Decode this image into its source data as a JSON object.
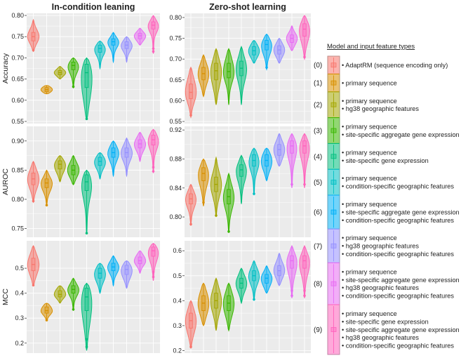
{
  "figure": {
    "col_titles": [
      "In-condition leaning",
      "Zero-shot learning"
    ],
    "row_labels": [
      "Accuracy",
      "AUROC",
      "MCC"
    ]
  },
  "legend": {
    "title": "Model and input feature types",
    "entries": [
      {
        "id": "(0)",
        "color": "#F8766D",
        "lines": [
          "• AdaptRM (sequence encoding only)"
        ]
      },
      {
        "id": "(1)",
        "color": "#D89000",
        "lines": [
          "• primary sequence"
        ]
      },
      {
        "id": "(2)",
        "color": "#A3A500",
        "lines": [
          "• primary sequence",
          "• hg38 geographic features"
        ]
      },
      {
        "id": "(3)",
        "color": "#39B600",
        "lines": [
          "• primary sequence",
          "• site-specific aggregate gene expression"
        ]
      },
      {
        "id": "(4)",
        "color": "#00BF7D",
        "lines": [
          "• primary sequence",
          "• site-specific gene expression"
        ]
      },
      {
        "id": "(5)",
        "color": "#00BFC4",
        "lines": [
          "• primary sequence",
          "• condition-specific geographic features"
        ]
      },
      {
        "id": "(6)",
        "color": "#00B0F6",
        "lines": [
          "• primary sequence",
          "• site-specific aggregate gene expression",
          "• condition-specific geographic features"
        ]
      },
      {
        "id": "(7)",
        "color": "#9590FF",
        "lines": [
          "• primary sequence",
          "• hg38 geographic features",
          "• condition-specific geographic features"
        ]
      },
      {
        "id": "(8)",
        "color": "#E76BF3",
        "lines": [
          "• primary sequence",
          "• site-specific aggregate gene expression",
          "• hg38 geographic features",
          "• condition-specific geographic features"
        ]
      },
      {
        "id": "(9)",
        "color": "#FF62BC",
        "lines": [
          "• primary sequence",
          "• site-specific gene expression",
          "• site-specific aggregate gene expression",
          "• hg38 geographic features",
          "• condition-specific geographic features"
        ]
      }
    ]
  },
  "chart_data": [
    {
      "type": "violin",
      "panel": "In-condition leaning",
      "ylabel": "Accuracy",
      "ylim": [
        0.545,
        0.805
      ],
      "yticks": [
        0.55,
        0.6,
        0.65,
        0.7,
        0.75,
        0.8
      ],
      "tick_labels": [
        "0.55",
        "0.60",
        "0.65",
        "0.70",
        "0.75",
        "0.80"
      ],
      "series": [
        {
          "model": "(0)",
          "min": 0.715,
          "max": 0.79,
          "q1": 0.74,
          "median": 0.75,
          "q3": 0.76,
          "outliers": [
            0.718
          ]
        },
        {
          "model": "(1)",
          "min": 0.615,
          "max": 0.635,
          "q1": 0.62,
          "median": 0.625,
          "q3": 0.63,
          "outliers": []
        },
        {
          "model": "(2)",
          "min": 0.65,
          "max": 0.68,
          "q1": 0.66,
          "median": 0.665,
          "q3": 0.67,
          "outliers": []
        },
        {
          "model": "(3)",
          "min": 0.63,
          "max": 0.7,
          "q1": 0.672,
          "median": 0.682,
          "q3": 0.69,
          "outliers": [
            0.632
          ]
        },
        {
          "model": "(4)",
          "min": 0.555,
          "max": 0.7,
          "q1": 0.63,
          "median": 0.665,
          "q3": 0.685,
          "outliers": [
            0.556
          ]
        },
        {
          "model": "(5)",
          "min": 0.675,
          "max": 0.74,
          "q1": 0.713,
          "median": 0.722,
          "q3": 0.73,
          "outliers": []
        },
        {
          "model": "(6)",
          "min": 0.69,
          "max": 0.76,
          "q1": 0.73,
          "median": 0.738,
          "q3": 0.745,
          "outliers": []
        },
        {
          "model": "(7)",
          "min": 0.69,
          "max": 0.75,
          "q1": 0.722,
          "median": 0.73,
          "q3": 0.738,
          "outliers": []
        },
        {
          "model": "(8)",
          "min": 0.73,
          "max": 0.77,
          "q1": 0.745,
          "median": 0.752,
          "q3": 0.758,
          "outliers": []
        },
        {
          "model": "(9)",
          "min": 0.71,
          "max": 0.8,
          "q1": 0.768,
          "median": 0.777,
          "q3": 0.785,
          "outliers": [
            0.715,
            0.722
          ]
        }
      ]
    },
    {
      "type": "violin",
      "panel": "Zero-shot learning",
      "ylabel": "Accuracy",
      "ylim": [
        0.545,
        0.81
      ],
      "yticks": [
        0.55,
        0.6,
        0.65,
        0.7,
        0.75,
        0.8
      ],
      "tick_labels": [
        "0.55",
        "0.60",
        "0.65",
        "0.70",
        "0.75",
        "0.80"
      ],
      "series": [
        {
          "model": "(0)",
          "min": 0.56,
          "max": 0.68,
          "q1": 0.605,
          "median": 0.62,
          "q3": 0.64,
          "outliers": [
            0.565
          ]
        },
        {
          "model": "(1)",
          "min": 0.61,
          "max": 0.71,
          "q1": 0.65,
          "median": 0.665,
          "q3": 0.68,
          "outliers": []
        },
        {
          "model": "(2)",
          "min": 0.59,
          "max": 0.725,
          "q1": 0.65,
          "median": 0.672,
          "q3": 0.69,
          "outliers": []
        },
        {
          "model": "(3)",
          "min": 0.59,
          "max": 0.725,
          "q1": 0.655,
          "median": 0.67,
          "q3": 0.69,
          "outliers": []
        },
        {
          "model": "(4)",
          "min": 0.59,
          "max": 0.73,
          "q1": 0.66,
          "median": 0.678,
          "q3": 0.695,
          "outliers": []
        },
        {
          "model": "(5)",
          "min": 0.69,
          "max": 0.745,
          "q1": 0.71,
          "median": 0.72,
          "q3": 0.73,
          "outliers": []
        },
        {
          "model": "(6)",
          "min": 0.675,
          "max": 0.76,
          "q1": 0.722,
          "median": 0.735,
          "q3": 0.745,
          "outliers": [
            0.68
          ]
        },
        {
          "model": "(7)",
          "min": 0.69,
          "max": 0.75,
          "q1": 0.712,
          "median": 0.722,
          "q3": 0.732,
          "outliers": []
        },
        {
          "model": "(8)",
          "min": 0.72,
          "max": 0.78,
          "q1": 0.74,
          "median": 0.75,
          "q3": 0.758,
          "outliers": []
        },
        {
          "model": "(9)",
          "min": 0.7,
          "max": 0.805,
          "q1": 0.755,
          "median": 0.772,
          "q3": 0.785,
          "outliers": [
            0.705
          ]
        }
      ]
    },
    {
      "type": "violin",
      "panel": "In-condition leaning",
      "ylabel": "AUROC",
      "ylim": [
        0.735,
        0.925
      ],
      "yticks": [
        0.75,
        0.8,
        0.85,
        0.9
      ],
      "tick_labels": [
        "0.75",
        "0.80",
        "0.85",
        "0.90"
      ],
      "series": [
        {
          "model": "(0)",
          "min": 0.795,
          "max": 0.865,
          "q1": 0.825,
          "median": 0.835,
          "q3": 0.845,
          "outliers": [
            0.797
          ]
        },
        {
          "model": "(1)",
          "min": 0.79,
          "max": 0.85,
          "q1": 0.82,
          "median": 0.828,
          "q3": 0.835,
          "outliers": [
            0.79
          ]
        },
        {
          "model": "(2)",
          "min": 0.83,
          "max": 0.875,
          "q1": 0.852,
          "median": 0.86,
          "q3": 0.866,
          "outliers": []
        },
        {
          "model": "(3)",
          "min": 0.825,
          "max": 0.875,
          "q1": 0.842,
          "median": 0.85,
          "q3": 0.858,
          "outliers": []
        },
        {
          "model": "(4)",
          "min": 0.74,
          "max": 0.85,
          "q1": 0.815,
          "median": 0.83,
          "q3": 0.842,
          "outliers": [
            0.742
          ]
        },
        {
          "model": "(5)",
          "min": 0.835,
          "max": 0.88,
          "q1": 0.858,
          "median": 0.865,
          "q3": 0.872,
          "outliers": []
        },
        {
          "model": "(6)",
          "min": 0.84,
          "max": 0.9,
          "q1": 0.872,
          "median": 0.88,
          "q3": 0.888,
          "outliers": []
        },
        {
          "model": "(7)",
          "min": 0.84,
          "max": 0.905,
          "q1": 0.872,
          "median": 0.88,
          "q3": 0.888,
          "outliers": []
        },
        {
          "model": "(8)",
          "min": 0.865,
          "max": 0.915,
          "q1": 0.888,
          "median": 0.895,
          "q3": 0.902,
          "outliers": []
        },
        {
          "model": "(9)",
          "min": 0.845,
          "max": 0.92,
          "q1": 0.893,
          "median": 0.902,
          "q3": 0.91,
          "outliers": [
            0.848,
            0.855
          ]
        }
      ]
    },
    {
      "type": "violin",
      "panel": "Zero-shot learning",
      "ylabel": "AUROC",
      "ylim": [
        0.772,
        0.925
      ],
      "yticks": [
        0.8,
        0.84,
        0.88,
        0.92
      ],
      "tick_labels": [
        "0.80",
        "0.84",
        "0.88",
        "0.92"
      ],
      "series": [
        {
          "model": "(0)",
          "min": 0.788,
          "max": 0.845,
          "q1": 0.818,
          "median": 0.825,
          "q3": 0.832,
          "outliers": [
            0.79
          ]
        },
        {
          "model": "(1)",
          "min": 0.815,
          "max": 0.88,
          "q1": 0.85,
          "median": 0.86,
          "q3": 0.868,
          "outliers": [
            0.82
          ]
        },
        {
          "model": "(2)",
          "min": 0.8,
          "max": 0.882,
          "q1": 0.835,
          "median": 0.845,
          "q3": 0.855,
          "outliers": [
            0.802
          ]
        },
        {
          "model": "(3)",
          "min": 0.778,
          "max": 0.86,
          "q1": 0.818,
          "median": 0.828,
          "q3": 0.838,
          "outliers": [
            0.78
          ]
        },
        {
          "model": "(4)",
          "min": 0.818,
          "max": 0.885,
          "q1": 0.856,
          "median": 0.865,
          "q3": 0.872,
          "outliers": []
        },
        {
          "model": "(5)",
          "min": 0.83,
          "max": 0.895,
          "q1": 0.87,
          "median": 0.878,
          "q3": 0.886,
          "outliers": [
            0.832
          ]
        },
        {
          "model": "(6)",
          "min": 0.85,
          "max": 0.895,
          "q1": 0.87,
          "median": 0.878,
          "q3": 0.886,
          "outliers": []
        },
        {
          "model": "(7)",
          "min": 0.87,
          "max": 0.915,
          "q1": 0.885,
          "median": 0.893,
          "q3": 0.9,
          "outliers": []
        },
        {
          "model": "(8)",
          "min": 0.84,
          "max": 0.915,
          "q1": 0.888,
          "median": 0.898,
          "q3": 0.905,
          "outliers": [
            0.845
          ]
        },
        {
          "model": "(9)",
          "min": 0.84,
          "max": 0.915,
          "q1": 0.888,
          "median": 0.898,
          "q3": 0.905,
          "outliers": [
            0.845
          ]
        }
      ]
    },
    {
      "type": "violin",
      "panel": "In-condition leaning",
      "ylabel": "MCC",
      "ylim": [
        0.16,
        0.61
      ],
      "yticks": [
        0.2,
        0.3,
        0.4,
        0.5
      ],
      "tick_labels": [
        "0.2",
        "0.3",
        "0.4",
        "0.5"
      ],
      "series": [
        {
          "model": "(0)",
          "min": 0.43,
          "max": 0.59,
          "q1": 0.49,
          "median": 0.515,
          "q3": 0.54,
          "outliers": [
            0.432
          ]
        },
        {
          "model": "(1)",
          "min": 0.29,
          "max": 0.36,
          "q1": 0.32,
          "median": 0.33,
          "q3": 0.345,
          "outliers": [
            0.292
          ]
        },
        {
          "model": "(2)",
          "min": 0.36,
          "max": 0.43,
          "q1": 0.385,
          "median": 0.395,
          "q3": 0.41,
          "outliers": []
        },
        {
          "model": "(3)",
          "min": 0.33,
          "max": 0.46,
          "q1": 0.4,
          "median": 0.415,
          "q3": 0.43,
          "outliers": [
            0.335
          ]
        },
        {
          "model": "(4)",
          "min": 0.17,
          "max": 0.44,
          "q1": 0.33,
          "median": 0.385,
          "q3": 0.42,
          "outliers": [
            0.185,
            0.215
          ]
        },
        {
          "model": "(5)",
          "min": 0.4,
          "max": 0.52,
          "q1": 0.46,
          "median": 0.48,
          "q3": 0.5,
          "outliers": []
        },
        {
          "model": "(6)",
          "min": 0.43,
          "max": 0.55,
          "q1": 0.49,
          "median": 0.505,
          "q3": 0.52,
          "outliers": []
        },
        {
          "model": "(7)",
          "min": 0.42,
          "max": 0.53,
          "q1": 0.475,
          "median": 0.495,
          "q3": 0.512,
          "outliers": []
        },
        {
          "model": "(8)",
          "min": 0.48,
          "max": 0.57,
          "q1": 0.518,
          "median": 0.53,
          "q3": 0.545,
          "outliers": []
        },
        {
          "model": "(9)",
          "min": 0.45,
          "max": 0.6,
          "q1": 0.548,
          "median": 0.57,
          "q3": 0.585,
          "outliers": [
            0.465,
            0.485
          ]
        }
      ]
    },
    {
      "type": "violin",
      "panel": "Zero-shot learning",
      "ylabel": "MCC",
      "ylim": [
        0.19,
        0.64
      ],
      "yticks": [
        0.2,
        0.3,
        0.4,
        0.5,
        0.6
      ],
      "tick_labels": [
        "0.2",
        "0.3",
        "0.4",
        "0.5",
        "0.6"
      ],
      "series": [
        {
          "model": "(0)",
          "min": 0.21,
          "max": 0.4,
          "q1": 0.29,
          "median": 0.32,
          "q3": 0.35,
          "outliers": [
            0.215
          ]
        },
        {
          "model": "(1)",
          "min": 0.3,
          "max": 0.47,
          "q1": 0.36,
          "median": 0.39,
          "q3": 0.42,
          "outliers": []
        },
        {
          "model": "(2)",
          "min": 0.28,
          "max": 0.49,
          "q1": 0.37,
          "median": 0.4,
          "q3": 0.43,
          "outliers": []
        },
        {
          "model": "(3)",
          "min": 0.28,
          "max": 0.47,
          "q1": 0.36,
          "median": 0.39,
          "q3": 0.42,
          "outliers": []
        },
        {
          "model": "(4)",
          "min": 0.39,
          "max": 0.53,
          "q1": 0.45,
          "median": 0.47,
          "q3": 0.49,
          "outliers": []
        },
        {
          "model": "(5)",
          "min": 0.4,
          "max": 0.56,
          "q1": 0.48,
          "median": 0.5,
          "q3": 0.52,
          "outliers": [
            0.405
          ]
        },
        {
          "model": "(6)",
          "min": 0.43,
          "max": 0.54,
          "q1": 0.47,
          "median": 0.49,
          "q3": 0.505,
          "outliers": []
        },
        {
          "model": "(7)",
          "min": 0.46,
          "max": 0.59,
          "q1": 0.5,
          "median": 0.52,
          "q3": 0.54,
          "outliers": []
        },
        {
          "model": "(8)",
          "min": 0.41,
          "max": 0.62,
          "q1": 0.53,
          "median": 0.56,
          "q3": 0.58,
          "outliers": [
            0.42,
            0.44
          ]
        },
        {
          "model": "(9)",
          "min": 0.41,
          "max": 0.62,
          "q1": 0.53,
          "median": 0.56,
          "q3": 0.58,
          "outliers": [
            0.42,
            0.44
          ]
        }
      ]
    }
  ]
}
